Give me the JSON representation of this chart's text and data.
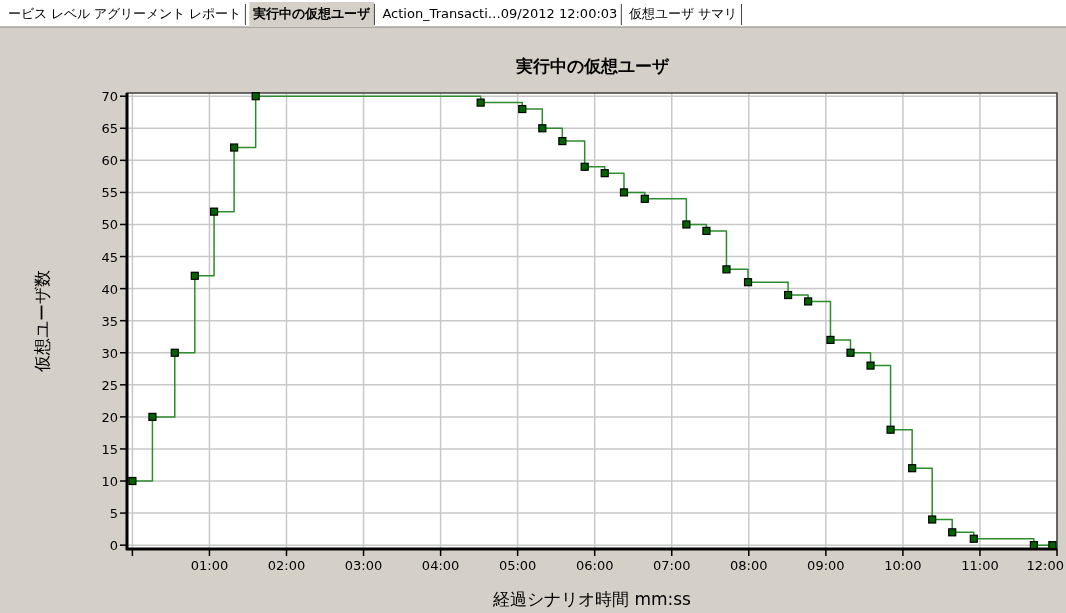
{
  "chart_data": {
    "type": "step",
    "title": "実行中の仮想ユーザ",
    "xlabel": "経過シナリオ時間 mm:ss",
    "ylabel": "仮想ユーザ数",
    "annotations": [
      "ービス レベル アグリーメント レポート",
      "実行中の仮想ユーザ",
      "Action_Transacti…09/2012 12:00:03",
      "仮想ユーザ サマリ"
    ],
    "x": [
      0.0,
      0.26,
      0.55,
      0.81,
      1.06,
      1.32,
      1.6,
      4.52,
      5.06,
      5.32,
      5.58,
      5.87,
      6.13,
      6.38,
      6.65,
      7.19,
      7.45,
      7.71,
      7.99,
      8.51,
      8.77,
      9.06,
      9.32,
      9.58,
      9.84,
      10.12,
      10.38,
      10.64,
      10.92,
      11.7,
      11.94
    ],
    "series": [
      {
        "color": "#2e8b2e",
        "values": [
          10,
          20,
          30,
          42,
          52,
          62,
          70,
          69,
          68,
          65,
          63,
          59,
          58,
          55,
          54,
          50,
          49,
          43,
          41,
          39,
          38,
          32,
          30,
          28,
          18,
          12,
          4,
          2,
          1,
          0,
          0
        ]
      }
    ],
    "xlim": [
      -0.07,
      12
    ],
    "ylim": [
      -0.6,
      70.5
    ],
    "xticks": [
      {
        "value": 0,
        "label": null
      },
      {
        "value": 1,
        "label": "01:00"
      },
      {
        "value": 2,
        "label": "02:00"
      },
      {
        "value": 3,
        "label": "03:00"
      },
      {
        "value": 4,
        "label": "04:00"
      },
      {
        "value": 5,
        "label": "05:00"
      },
      {
        "value": 6,
        "label": "06:00"
      },
      {
        "value": 7,
        "label": "07:00"
      },
      {
        "value": 8,
        "label": "08:00"
      },
      {
        "value": 9,
        "label": "09:00"
      },
      {
        "value": 10,
        "label": "10:00"
      },
      {
        "value": 11,
        "label": "11:00"
      },
      {
        "value": 12,
        "label": "12:00"
      }
    ],
    "yticks": [
      0,
      5,
      10,
      15,
      20,
      25,
      30,
      35,
      40,
      45,
      50,
      55,
      60,
      65,
      70
    ],
    "grid": true,
    "marker": "square",
    "line_style": "solid"
  }
}
